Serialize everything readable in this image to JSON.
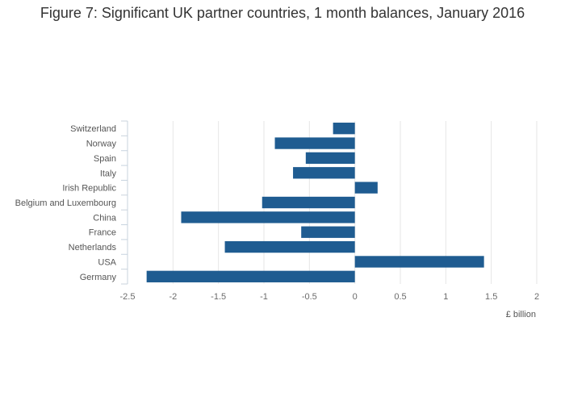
{
  "chart_data": {
    "type": "bar",
    "orientation": "horizontal",
    "title": "Figure 7: Significant UK partner countries, 1 month balances, January 2016",
    "xlabel": "£ billion",
    "ylabel": "",
    "xlim": [
      -2.5,
      2
    ],
    "ticks": [
      "-2.5",
      "-2",
      "-1.5",
      "-1",
      "-0.5",
      "0",
      "0.5",
      "1",
      "1.5",
      "2"
    ],
    "grid": true,
    "categories": [
      "Switzerland",
      "Norway",
      "Spain",
      "Italy",
      "Irish Republic",
      "Belgium and Luxembourg",
      "China",
      "France",
      "Netherlands",
      "USA",
      "Germany"
    ],
    "values": [
      -0.24,
      -0.88,
      -0.54,
      -0.68,
      0.25,
      -1.02,
      -1.91,
      -0.59,
      -1.43,
      1.42,
      -2.29
    ],
    "bar_color": "#1f5c91"
  }
}
